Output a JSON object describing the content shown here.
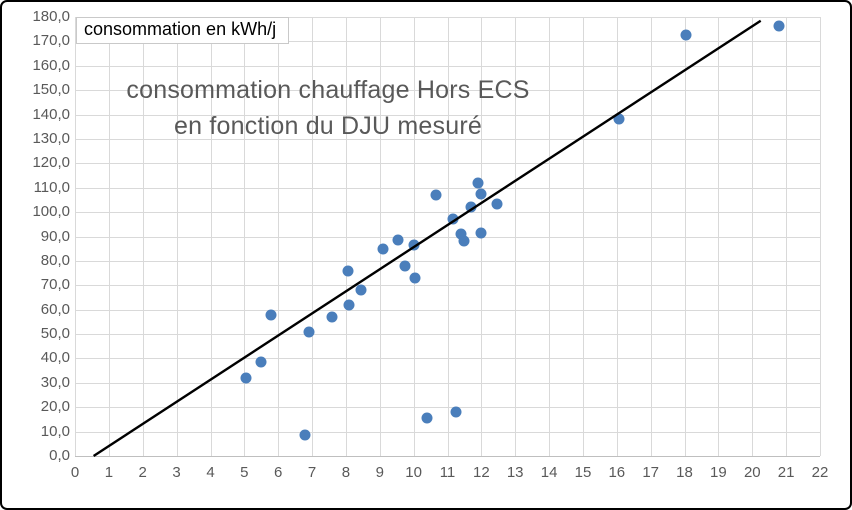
{
  "chart_data": {
    "type": "scatter",
    "title_line1": "consommation chauffage Hors ECS",
    "title_line2": "en fonction du DJU mesuré",
    "y_axis_label": "consommation en kWh/j",
    "xlabel": "",
    "ylabel": "consommation en kWh/j",
    "xlim": [
      0,
      22
    ],
    "ylim": [
      0,
      180
    ],
    "x_tick_labels": [
      "0",
      "1",
      "2",
      "3",
      "4",
      "5",
      "6",
      "7",
      "8",
      "9",
      "10",
      "11",
      "12",
      "13",
      "14",
      "15",
      "16",
      "17",
      "18",
      "19",
      "20",
      "21",
      "22"
    ],
    "y_tick_labels": [
      "0,0",
      "10,0",
      "20,0",
      "30,0",
      "40,0",
      "50,0",
      "60,0",
      "70,0",
      "80,0",
      "90,0",
      "100,0",
      "110,0",
      "120,0",
      "130,0",
      "140,0",
      "150,0",
      "160,0",
      "170,0",
      "180,0"
    ],
    "grid": "both",
    "legend": "none",
    "points": [
      [
        5.05,
        32
      ],
      [
        5.5,
        38.5
      ],
      [
        5.8,
        58
      ],
      [
        6.8,
        8.5
      ],
      [
        6.9,
        51
      ],
      [
        7.6,
        57
      ],
      [
        8.05,
        76
      ],
      [
        8.1,
        62
      ],
      [
        8.45,
        68
      ],
      [
        9.1,
        85
      ],
      [
        9.55,
        88.5
      ],
      [
        9.75,
        78
      ],
      [
        10.0,
        86.5
      ],
      [
        10.05,
        73
      ],
      [
        10.4,
        15.5
      ],
      [
        10.65,
        107
      ],
      [
        11.15,
        97
      ],
      [
        11.25,
        18
      ],
      [
        11.4,
        91
      ],
      [
        11.5,
        88
      ],
      [
        11.7,
        102
      ],
      [
        11.9,
        112
      ],
      [
        12.0,
        107.5
      ],
      [
        12.0,
        91.5
      ],
      [
        12.45,
        103.5
      ],
      [
        16.05,
        138
      ],
      [
        18.05,
        172.5
      ],
      [
        20.8,
        176.5
      ]
    ],
    "trendline": {
      "x1": 0.55,
      "y1": 0,
      "x2": 20.25,
      "y2": 178.5
    },
    "colors": {
      "marker": "#4A7EBB",
      "trendline": "#000000",
      "gridline": "#D9D9D9",
      "axis_line": "#BFBFBF",
      "tick_text": "#595959",
      "title_text": "#595959",
      "axis_label_text": "#000000"
    }
  }
}
